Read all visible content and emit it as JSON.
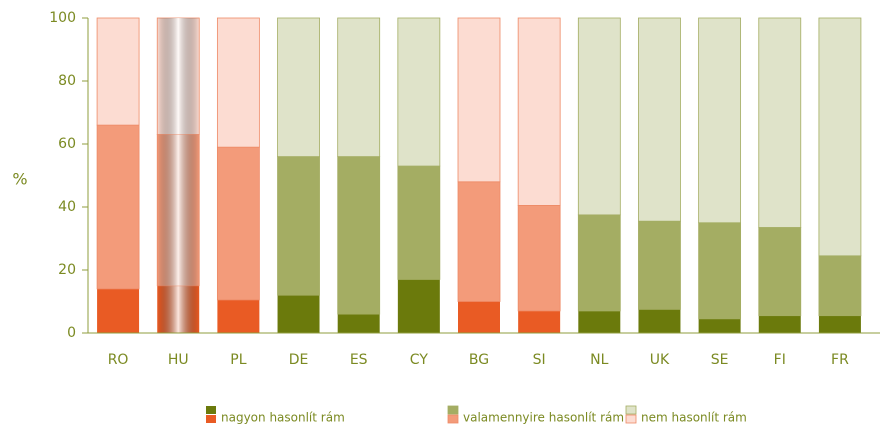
{
  "chart_data": {
    "type": "stacked_bar",
    "ylabel": "%",
    "categories": [
      "RO",
      "HU",
      "PL",
      "DE",
      "ES",
      "CY",
      "BG",
      "SI",
      "NL",
      "UK",
      "SE",
      "FI",
      "FR"
    ],
    "series": [
      {
        "name": "nagyon hasonlít rám",
        "values": [
          14,
          15,
          10.5,
          12,
          6,
          17,
          10,
          7,
          7,
          7.5,
          4.5,
          5.5,
          5.5
        ],
        "colors": [
          "#e95b24",
          "#e95b24",
          "#e95b24",
          "#6b7a0c",
          "#6b7a0c",
          "#6b7a0c",
          "#e95b24",
          "#e95b24",
          "#6b7a0c",
          "#6b7a0c",
          "#6b7a0c",
          "#6b7a0c",
          "#6b7a0c"
        ]
      },
      {
        "name": "valamennyire hasonlít rám",
        "values": [
          52,
          48,
          48.5,
          44,
          50,
          36,
          38,
          33.5,
          30.5,
          28,
          30.5,
          28,
          19
        ],
        "colors": [
          "#f39b7a",
          "#f39b7a",
          "#f39b7a",
          "#a4ad63",
          "#a4ad63",
          "#a4ad63",
          "#f39b7a",
          "#f39b7a",
          "#a4ad63",
          "#a4ad63",
          "#a4ad63",
          "#a4ad63",
          "#a4ad63"
        ]
      },
      {
        "name": "nem hasonlít rám",
        "values": [
          34,
          37,
          41,
          44,
          44,
          47,
          52,
          59.5,
          62.5,
          64.5,
          65,
          66.5,
          75.5
        ],
        "colors": [
          "#fcdcd2",
          "#fcdcd2",
          "#fcdcd2",
          "#dfe3c9",
          "#dfe3c9",
          "#dfe3c9",
          "#fcdcd2",
          "#fcdcd2",
          "#dfe3c9",
          "#dfe3c9",
          "#dfe3c9",
          "#dfe3c9",
          "#dfe3c9"
        ]
      }
    ],
    "highlight_index": 1,
    "ylim": [
      0,
      100
    ],
    "yticks": [
      0,
      20,
      40,
      60,
      80,
      100
    ]
  }
}
